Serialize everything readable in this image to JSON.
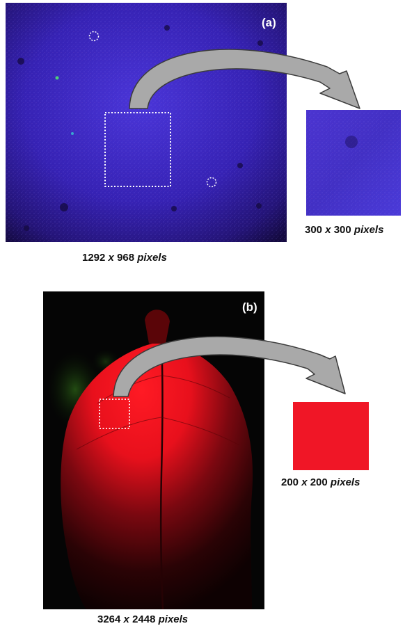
{
  "panel_a": {
    "label": "(a)",
    "full_image": {
      "width": "1292",
      "times": "x",
      "height": "968",
      "unit": "pixels"
    },
    "crop_image": {
      "width": "300",
      "times": "x",
      "height": "300",
      "unit": "pixels"
    }
  },
  "panel_b": {
    "label": "(b)",
    "full_image": {
      "width": "3264",
      "times": "x",
      "height": "2448",
      "unit": "pixels"
    },
    "crop_image": {
      "width": "200",
      "times": "x",
      "height": "200",
      "unit": "pixels"
    }
  },
  "colors": {
    "arrow_fill": "#a9a9a9",
    "arrow_stroke": "#3c3c3c",
    "panel_a_base": "#3a1fb0",
    "panel_b_leaf": "#e8101c",
    "selection_box": "#ffffff"
  }
}
